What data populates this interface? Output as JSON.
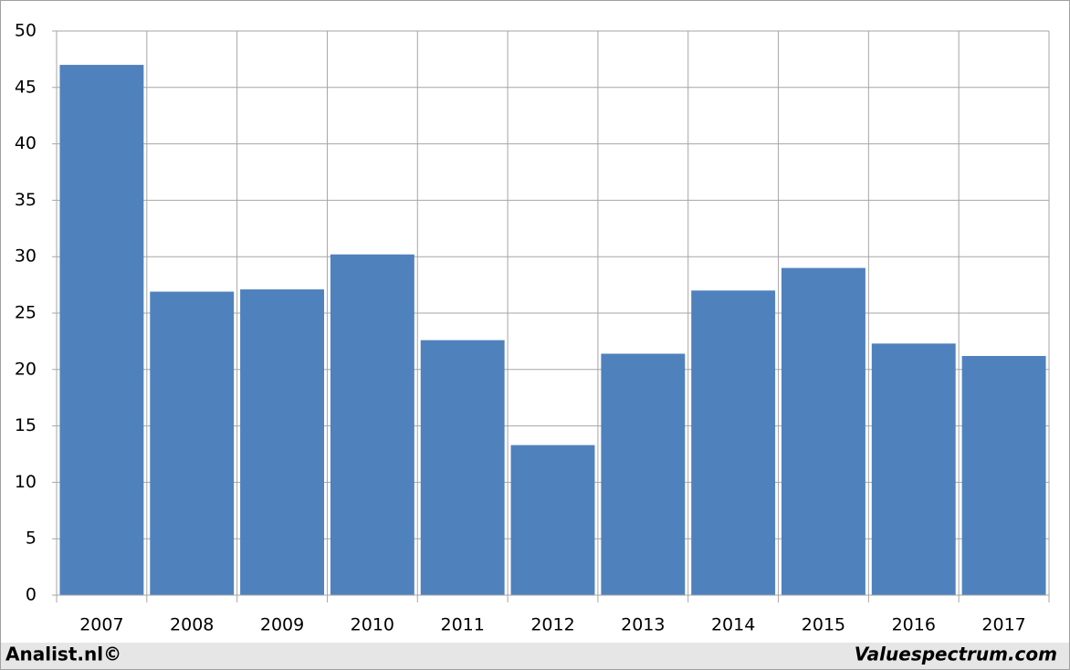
{
  "chart_data": {
    "type": "bar",
    "categories": [
      "2007",
      "2008",
      "2009",
      "2010",
      "2011",
      "2012",
      "2013",
      "2014",
      "2015",
      "2016",
      "2017"
    ],
    "values": [
      47.0,
      26.9,
      27.1,
      30.2,
      22.6,
      13.3,
      21.4,
      27.0,
      29.0,
      22.3,
      21.2
    ],
    "color": "#4f81bd",
    "ylim": [
      0,
      50
    ],
    "yticks": [
      0,
      5,
      10,
      15,
      20,
      25,
      30,
      35,
      40,
      45,
      50
    ],
    "grid": true,
    "footer_left": "Analist.nl©",
    "footer_right": "Valuespectrum.com"
  }
}
